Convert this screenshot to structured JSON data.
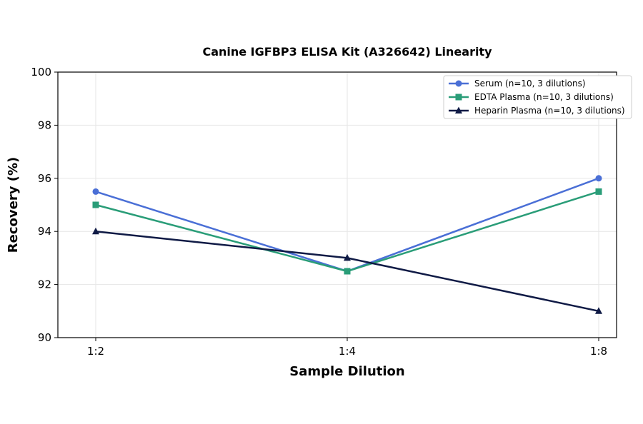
{
  "chart_data": {
    "type": "line",
    "title": "Canine IGFBP3 ELISA Kit (A326642) Linearity",
    "xlabel": "Sample Dilution",
    "ylabel": "Recovery (%)",
    "categories": [
      "1:2",
      "1:4",
      "1:8"
    ],
    "ylim": [
      90,
      100
    ],
    "yticks": [
      90,
      92,
      94,
      96,
      98,
      100
    ],
    "grid": true,
    "legend_position": "top-right",
    "series": [
      {
        "name": "Serum (n=10, 3 dilutions)",
        "values": [
          95.5,
          92.5,
          96.0
        ],
        "color": "#4a6fd6",
        "marker": "circle"
      },
      {
        "name": "EDTA Plasma (n=10, 3 dilutions)",
        "values": [
          95.0,
          92.5,
          95.5
        ],
        "color": "#2a9d78",
        "marker": "square"
      },
      {
        "name": "Heparin Plasma (n=10, 3 dilutions)",
        "values": [
          94.0,
          93.0,
          91.0
        ],
        "color": "#0f1a45",
        "marker": "triangle"
      }
    ]
  }
}
